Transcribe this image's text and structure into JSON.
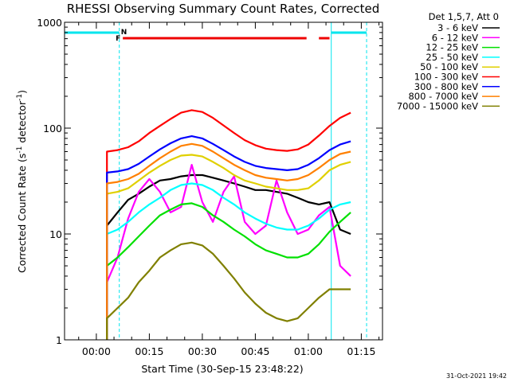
{
  "chart_data": {
    "type": "line",
    "title": "RHESSI Observing Summary Count Rates, Corrected",
    "xlabel": "Start Time (30-Sep-15 23:48:22)",
    "ylabel_main": "Corrected Count Rate (s",
    "ylabel_sup1": "-1",
    "ylabel_mid": " detector",
    "ylabel_sup2": "-1",
    "ylabel_end": ")",
    "yscale": "log",
    "ylim": [
      1,
      1000
    ],
    "xlim_minutes": [
      -9,
      81
    ],
    "x_tick_labels": [
      "00:00",
      "00:15",
      "00:30",
      "00:45",
      "01:00",
      "01:15"
    ],
    "x_tick_minutes": [
      0,
      15,
      30,
      45,
      60,
      75
    ],
    "y_tick_labels": [
      "1",
      "10",
      "100",
      "1000"
    ],
    "y_tick_values": [
      1,
      10,
      100,
      1000
    ],
    "legend_title": "Det 1,5,7, Att 0",
    "footer_date": "31-Oct-2021 19:42",
    "flag_labels": {
      "flare": "F",
      "night": "N"
    },
    "flags": {
      "night_minutes": [
        [
          -9,
          6.5
        ],
        [
          66.5,
          76.5
        ]
      ],
      "flare_minutes": [
        [
          7.5,
          59.5
        ],
        [
          63,
          66
        ]
      ],
      "night_edges_minutes": [
        -9,
        6.5,
        66.5,
        76.5
      ]
    },
    "x_minutes": [
      3,
      6,
      9,
      12,
      15,
      18,
      21,
      24,
      27,
      30,
      33,
      36,
      39,
      42,
      45,
      48,
      51,
      54,
      57,
      60,
      63,
      66,
      69,
      72
    ],
    "series": [
      {
        "name": "3 - 6 keV",
        "color": "#000000",
        "values": [
          12,
          16,
          21,
          24,
          28,
          32,
          33,
          35,
          36,
          36,
          34,
          32,
          30,
          28,
          26,
          26,
          25,
          24,
          22,
          20,
          19,
          20,
          11,
          10
        ]
      },
      {
        "name": "6 - 12 keV",
        "color": "#ff00ff",
        "values": [
          3.5,
          6,
          14,
          25,
          33,
          25,
          16,
          18,
          45,
          20,
          13,
          25,
          35,
          13,
          10,
          12,
          32,
          16,
          10,
          11,
          15,
          18,
          5,
          4
        ]
      },
      {
        "name": "12 - 25 keV",
        "color": "#00e000",
        "values": [
          5,
          6,
          7.5,
          9.5,
          12,
          15,
          17,
          19,
          19.5,
          18,
          15,
          13,
          11,
          9.5,
          8,
          7,
          6.5,
          6,
          6,
          6.5,
          8,
          10.5,
          13,
          16
        ]
      },
      {
        "name": "25 - 50 keV",
        "color": "#00ffff",
        "values": [
          10,
          11,
          13,
          16,
          19,
          22,
          26,
          29,
          30,
          29,
          26,
          22,
          19,
          16,
          14,
          12.5,
          11.5,
          11,
          11,
          12,
          14,
          17,
          19,
          20
        ]
      },
      {
        "name": "50 - 100 keV",
        "color": "#e0d000",
        "values": [
          24,
          25,
          27,
          32,
          38,
          44,
          50,
          55,
          56,
          54,
          48,
          42,
          36,
          32,
          30,
          28,
          27,
          26,
          26,
          27,
          32,
          40,
          45,
          48
        ]
      },
      {
        "name": "100 - 300 keV",
        "color": "#ff0000",
        "values": [
          60,
          62,
          66,
          75,
          90,
          105,
          122,
          140,
          148,
          142,
          125,
          106,
          90,
          77,
          69,
          64,
          62,
          61,
          63,
          70,
          85,
          105,
          125,
          140
        ]
      },
      {
        "name": "300 - 800 keV",
        "color": "#0000ff",
        "values": [
          38,
          39,
          41,
          46,
          54,
          63,
          72,
          80,
          84,
          80,
          71,
          62,
          54,
          48,
          44,
          42,
          41,
          40,
          41,
          45,
          52,
          62,
          70,
          75
        ]
      },
      {
        "name": "800 - 7000 keV",
        "color": "#ff8000",
        "values": [
          30,
          31,
          33,
          37,
          44,
          52,
          60,
          68,
          71,
          68,
          60,
          52,
          45,
          40,
          36,
          34,
          33,
          32,
          33,
          36,
          42,
          50,
          57,
          60
        ]
      },
      {
        "name": "7000 - 15000 keV",
        "color": "#808000",
        "values": [
          1.6,
          2,
          2.5,
          3.5,
          4.5,
          6,
          7,
          8,
          8.3,
          7.8,
          6.5,
          5,
          3.8,
          2.8,
          2.2,
          1.8,
          1.6,
          1.5,
          1.6,
          2,
          2.5,
          3,
          3,
          3
        ]
      }
    ]
  }
}
